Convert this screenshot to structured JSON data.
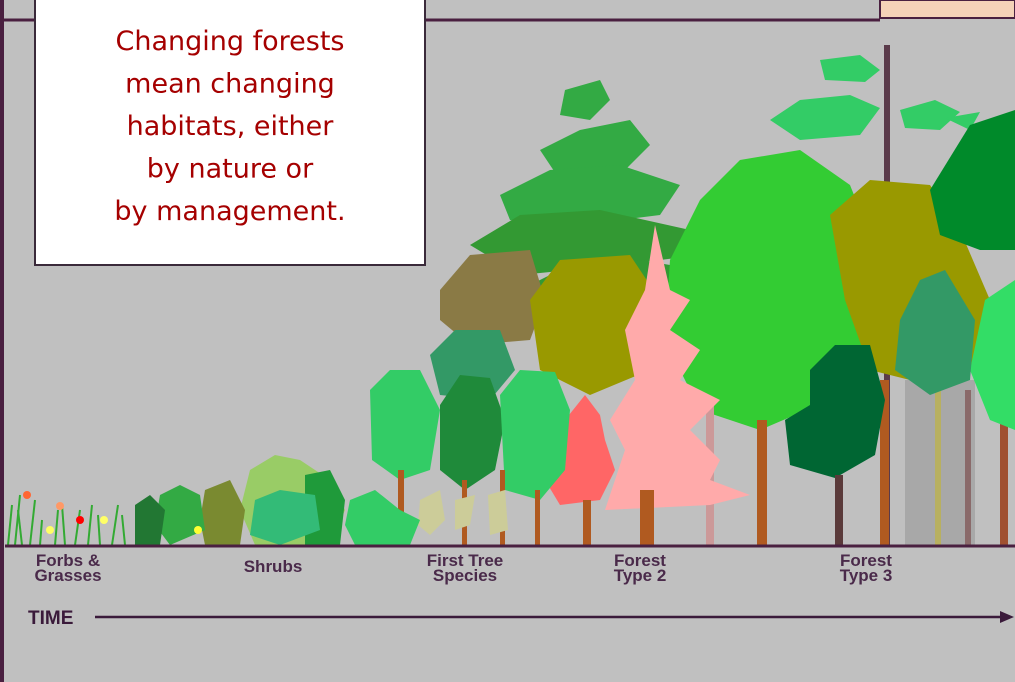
{
  "callout": {
    "lines": [
      "Changing forests",
      "mean changing",
      "habitats, either",
      "by nature or",
      "by management."
    ]
  },
  "stages": [
    {
      "lines": [
        "Forbs &",
        "Grasses"
      ]
    },
    {
      "lines": [
        "Shrubs"
      ]
    },
    {
      "lines": [
        "First Tree",
        "Species"
      ]
    },
    {
      "lines": [
        "Forest",
        "Type 2"
      ]
    },
    {
      "lines": [
        "Forest",
        "Type 3"
      ]
    }
  ],
  "axis_label": "TIME"
}
